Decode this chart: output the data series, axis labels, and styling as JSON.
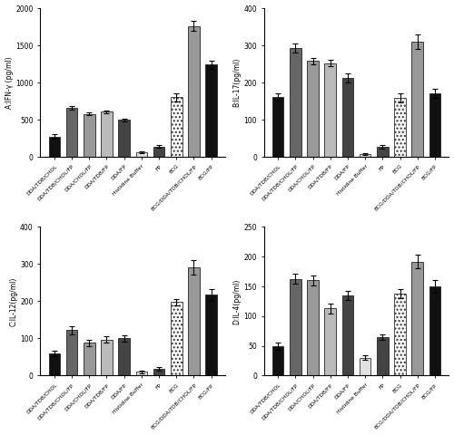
{
  "categories": [
    "DDA/TDB/CHOL",
    "DDA/TDB/CHOL/FP",
    "DDA/CHOL/FP",
    "DDA/TDB/FP",
    "DDA/FP",
    "Histidine Buffer",
    "FP",
    "BCG",
    "BCG/DDA/TDB/CHOL/FP",
    "BCG/FP"
  ],
  "colors": [
    "#111111",
    "#666666",
    "#999999",
    "#bbbbbb",
    "#444444",
    "#e8e8e8",
    "#444444",
    "BCG_PATTERN",
    "#999999",
    "#111111"
  ],
  "ifn_values": [
    275,
    660,
    575,
    610,
    500,
    65,
    140,
    800,
    1760,
    1240
  ],
  "ifn_errors": [
    25,
    22,
    18,
    18,
    18,
    10,
    20,
    60,
    65,
    55
  ],
  "il17_values": [
    162,
    293,
    258,
    252,
    213,
    8,
    28,
    158,
    310,
    170
  ],
  "il17_errors": [
    10,
    12,
    8,
    8,
    12,
    3,
    5,
    12,
    20,
    12
  ],
  "il12_values": [
    60,
    122,
    88,
    97,
    100,
    10,
    18,
    198,
    292,
    217
  ],
  "il12_errors": [
    8,
    10,
    8,
    8,
    8,
    3,
    4,
    8,
    20,
    15
  ],
  "il4_values": [
    50,
    163,
    160,
    113,
    135,
    30,
    65,
    138,
    192,
    150
  ],
  "il4_errors": [
    6,
    8,
    8,
    8,
    8,
    4,
    5,
    8,
    12,
    10
  ],
  "ylim_A": [
    0,
    2000
  ],
  "ylim_B": [
    0,
    400
  ],
  "ylim_C": [
    0,
    400
  ],
  "ylim_D": [
    0,
    250
  ],
  "yticks_A": [
    0,
    500,
    1000,
    1500,
    2000
  ],
  "yticks_B": [
    0,
    100,
    200,
    300,
    400
  ],
  "yticks_C": [
    0,
    100,
    200,
    300,
    400
  ],
  "yticks_D": [
    0,
    50,
    100,
    150,
    200,
    250
  ],
  "ylabel_A": "A:IFN-γ (pg/ml)",
  "ylabel_B": "B:IL-17(pg/ml)",
  "ylabel_C": "C:IL-12(pg/ml)",
  "ylabel_D": "D:IL-4(pg/ml)"
}
